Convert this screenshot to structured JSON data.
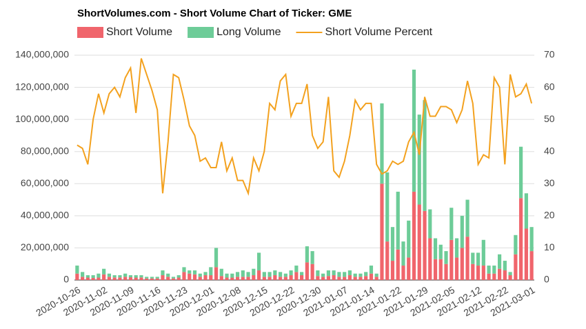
{
  "chart_data": {
    "type": "bar",
    "title": "ShortVolumes.com - Short Volume Chart of Ticker: GME",
    "categories": [
      "2020-10-26",
      null,
      null,
      null,
      null,
      "2020-11-02",
      null,
      null,
      null,
      null,
      "2020-11-09",
      null,
      null,
      null,
      null,
      "2020-11-16",
      null,
      null,
      null,
      null,
      "2020-11-23",
      null,
      null,
      null,
      null,
      "2020-12-01",
      null,
      null,
      null,
      null,
      "2020-12-08",
      null,
      null,
      null,
      null,
      "2020-12-15",
      null,
      null,
      null,
      null,
      "2020-12-22",
      null,
      null,
      null,
      null,
      "2020-12-30",
      null,
      null,
      null,
      null,
      "2021-01-07",
      null,
      null,
      null,
      null,
      "2021-01-14",
      null,
      null,
      null,
      null,
      "2021-01-22",
      null,
      null,
      null,
      null,
      "2021-01-29",
      null,
      null,
      null,
      null,
      "2021-02-05",
      null,
      null,
      null,
      null,
      "2021-02-12",
      null,
      null,
      null,
      null,
      "2021-02-22",
      null,
      null,
      null,
      null,
      "2021-03-01"
    ],
    "series": [
      {
        "name": "Short Volume",
        "color": "#f0656c",
        "values": [
          4000000,
          2000000,
          1500000,
          1300000,
          1500000,
          3500000,
          2000000,
          1600000,
          1600000,
          2000000,
          1700000,
          1500000,
          1600000,
          1000000,
          1000000,
          1000000,
          3000000,
          2000000,
          1000000,
          1500000,
          5000000,
          4000000,
          3500000,
          2000000,
          3000000,
          3000000,
          8000000,
          2500000,
          1500000,
          1500000,
          2000000,
          2000000,
          2000000,
          3000000,
          6000000,
          2000000,
          2000000,
          3000000,
          2000000,
          2000000,
          3000000,
          5000000,
          3000000,
          11000000,
          10000000,
          2500000,
          2000000,
          2500000,
          3000000,
          2000000,
          2000000,
          3000000,
          2000000,
          2000000,
          2500000,
          4000000,
          2000000,
          60000000,
          24000000,
          12000000,
          19000000,
          9000000,
          14000000,
          55000000,
          47000000,
          43000000,
          26000000,
          13000000,
          13000000,
          10000000,
          25000000,
          14000000,
          20000000,
          27000000,
          10000000,
          9000000,
          9000000,
          4000000,
          4000000,
          7000000,
          6000000,
          3000000,
          16000000,
          51000000,
          32000000,
          18000000
        ]
      },
      {
        "name": "Long Volume",
        "color": "#6dcc98",
        "values": [
          5000000,
          3000000,
          1500000,
          1700000,
          2500000,
          3500000,
          2000000,
          1400000,
          1400000,
          2000000,
          1300000,
          1500000,
          1400000,
          1000000,
          1000000,
          1000000,
          3000000,
          2000000,
          1000000,
          1500000,
          3000000,
          2000000,
          2500000,
          2000000,
          2000000,
          5000000,
          12000000,
          4500000,
          2500000,
          2500000,
          3000000,
          4000000,
          3000000,
          4000000,
          11000000,
          3000000,
          3000000,
          3000000,
          3000000,
          2000000,
          3000000,
          4000000,
          2000000,
          10000000,
          8000000,
          3500000,
          2000000,
          3500000,
          3000000,
          3000000,
          3000000,
          3000000,
          2000000,
          2000000,
          2500000,
          5000000,
          2000000,
          50000000,
          43000000,
          21000000,
          36000000,
          15000000,
          23000000,
          76000000,
          56000000,
          69000000,
          18000000,
          13000000,
          9000000,
          8000000,
          20000000,
          12000000,
          20000000,
          23000000,
          7000000,
          8000000,
          16000000,
          5000000,
          5000000,
          9000000,
          6000000,
          2000000,
          12000000,
          32000000,
          22000000,
          15000000
        ]
      },
      {
        "name": "Short Volume Percent",
        "color": "#f3a11e",
        "axis": "y2",
        "type": "line",
        "values": [
          42,
          41,
          36,
          50,
          58,
          52,
          58,
          60,
          57,
          63,
          66,
          52,
          69,
          64,
          59,
          53,
          27,
          43,
          64,
          63,
          56,
          48,
          45,
          37,
          38,
          35,
          35,
          43,
          34,
          38,
          31,
          31,
          27,
          38,
          34,
          40,
          55,
          53,
          62,
          64,
          51,
          55,
          55,
          61,
          45,
          41,
          43,
          57,
          34,
          32,
          37,
          45,
          56,
          53,
          55,
          55,
          36,
          33,
          34,
          37,
          36,
          37,
          43,
          46,
          39,
          57,
          51,
          51,
          54,
          54,
          53,
          49,
          53,
          62,
          55,
          36,
          39,
          38,
          63,
          60,
          36,
          64,
          57,
          58,
          61,
          55
        ]
      }
    ],
    "ylim": [
      0,
      140000000
    ],
    "yticks": [
      0,
      {
        "value": 20000000,
        "label": "20,000,000"
      },
      {
        "value": 40000000,
        "label": "40,000,000"
      },
      {
        "value": 60000000,
        "label": "60,000,000"
      },
      {
        "value": 80000000,
        "label": "80,000,000"
      },
      {
        "value": 100000000,
        "label": "100,000,000"
      },
      {
        "value": 120000000,
        "label": "120,000,000"
      },
      {
        "value": 140000000,
        "label": "140,000,000"
      }
    ],
    "y2lim": [
      0,
      70
    ],
    "y2ticks": [
      0,
      10,
      20,
      30,
      40,
      50,
      60,
      70
    ],
    "grid": true,
    "stacked": true,
    "legend": "top"
  }
}
